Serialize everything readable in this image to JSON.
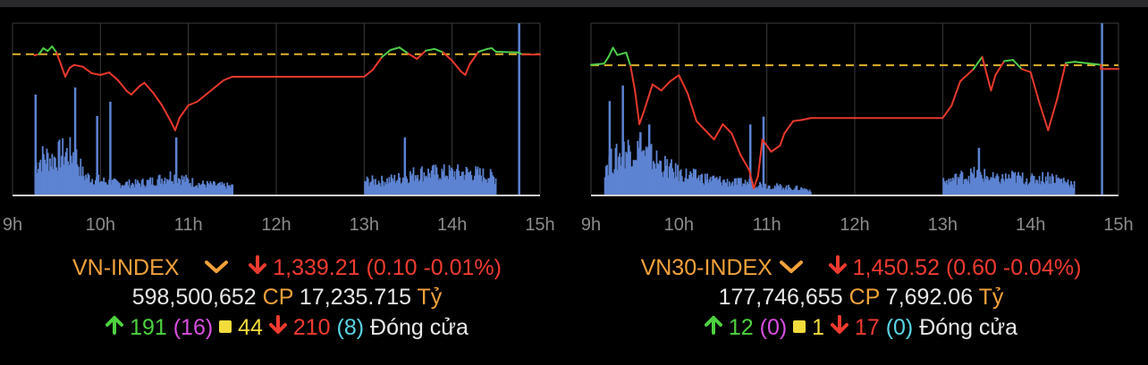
{
  "colors": {
    "background": "#000000",
    "grid": "#3c3c3c",
    "axis_line": "#d0d0d0",
    "tick_text": "#8c8c8c",
    "reference_line": "#e0b32c",
    "price_down": "#e8392c",
    "price_up": "#4fcf4a",
    "volume": "#5d83d2",
    "index_name": "#f3a23a"
  },
  "panels": [
    {
      "index_name": "VN-INDEX",
      "chevron_icon": "chevron-down-icon",
      "change_icon": "arrow-down-icon",
      "price": "1,339.21",
      "change": "(0.10 -0.01%)",
      "volume": "598,500,652",
      "volume_unit": "CP",
      "value": "17,235.715",
      "value_unit": "Tỷ",
      "advancers": "191",
      "ceiling": "(16)",
      "unchanged": "44",
      "decliners": "210",
      "floor": "(8)",
      "status": "Đóng cửa"
    },
    {
      "index_name": "VN30-INDEX",
      "chevron_icon": "chevron-down-icon",
      "change_icon": "arrow-down-icon",
      "price": "1,450.52",
      "change": "(0.60 -0.04%)",
      "volume": "177,746,655",
      "volume_unit": "CP",
      "value": "7,692.06",
      "value_unit": "Tỷ",
      "advancers": "12",
      "ceiling": "(0)",
      "unchanged": "1",
      "decliners": "17",
      "floor": "(0)",
      "status": "Đóng cửa"
    }
  ],
  "chart_data": [
    {
      "type": "line",
      "index": "VN-INDEX",
      "x_ticks": [
        "9h",
        "10h",
        "11h",
        "12h",
        "13h",
        "14h",
        "15h"
      ],
      "x_range_hours": [
        9,
        15
      ],
      "grid": true,
      "reference": 1339.31,
      "ylim": [
        1300,
        1348
      ],
      "price": [
        [
          9.25,
          1339.0
        ],
        [
          9.3,
          1339.3
        ],
        [
          9.35,
          1341.0
        ],
        [
          9.4,
          1340.2
        ],
        [
          9.45,
          1341.5
        ],
        [
          9.5,
          1339.8
        ],
        [
          9.55,
          1336.5
        ],
        [
          9.6,
          1333.0
        ],
        [
          9.65,
          1335.5
        ],
        [
          9.7,
          1336.3
        ],
        [
          9.8,
          1335.8
        ],
        [
          9.9,
          1334.0
        ],
        [
          10.0,
          1333.5
        ],
        [
          10.1,
          1334.2
        ],
        [
          10.2,
          1332.0
        ],
        [
          10.3,
          1329.0
        ],
        [
          10.35,
          1328.0
        ],
        [
          10.45,
          1330.5
        ],
        [
          10.5,
          1331.3
        ],
        [
          10.6,
          1328.5
        ],
        [
          10.7,
          1325.0
        ],
        [
          10.8,
          1320.5
        ],
        [
          10.85,
          1318.0
        ],
        [
          10.9,
          1321.5
        ],
        [
          11.0,
          1325.0
        ],
        [
          11.1,
          1326.0
        ],
        [
          11.2,
          1328.0
        ],
        [
          11.3,
          1330.0
        ],
        [
          11.4,
          1332.0
        ],
        [
          11.5,
          1333.0
        ],
        [
          13.0,
          1333.0
        ],
        [
          13.1,
          1335.0
        ],
        [
          13.2,
          1338.5
        ],
        [
          13.3,
          1340.5
        ],
        [
          13.4,
          1341.2
        ],
        [
          13.5,
          1339.5
        ],
        [
          13.6,
          1338.0
        ],
        [
          13.7,
          1340.3
        ],
        [
          13.8,
          1340.8
        ],
        [
          13.9,
          1339.8
        ],
        [
          14.0,
          1337.5
        ],
        [
          14.1,
          1334.5
        ],
        [
          14.15,
          1333.5
        ],
        [
          14.2,
          1336.5
        ],
        [
          14.3,
          1340.0
        ],
        [
          14.4,
          1340.8
        ],
        [
          14.45,
          1341.0
        ],
        [
          14.5,
          1340.0
        ],
        [
          14.75,
          1339.8
        ],
        [
          14.8,
          1339.21
        ],
        [
          15.0,
          1339.21
        ]
      ],
      "volume_profile": [
        [
          9.25,
          22
        ],
        [
          9.35,
          28
        ],
        [
          9.45,
          26
        ],
        [
          9.55,
          30
        ],
        [
          9.7,
          30
        ],
        [
          9.8,
          14
        ],
        [
          10.0,
          10
        ],
        [
          10.2,
          8
        ],
        [
          10.4,
          8
        ],
        [
          10.6,
          10
        ],
        [
          10.8,
          14
        ],
        [
          10.9,
          12
        ],
        [
          11.1,
          8
        ],
        [
          11.3,
          7
        ],
        [
          11.5,
          6
        ],
        [
          13.0,
          10
        ],
        [
          13.2,
          10
        ],
        [
          13.4,
          12
        ],
        [
          13.6,
          16
        ],
        [
          13.8,
          16
        ],
        [
          14.0,
          16
        ],
        [
          14.2,
          16
        ],
        [
          14.4,
          14
        ],
        [
          14.5,
          12
        ]
      ],
      "volume_spikes": [
        [
          9.25,
          70
        ],
        [
          9.7,
          75
        ],
        [
          9.95,
          55
        ],
        [
          10.1,
          65
        ],
        [
          10.85,
          40
        ],
        [
          13.45,
          40
        ],
        [
          14.75,
          120
        ]
      ],
      "volume_ylim": [
        0,
        120
      ]
    },
    {
      "type": "line",
      "index": "VN30-INDEX",
      "x_ticks": [
        "9h",
        "10h",
        "11h",
        "12h",
        "13h",
        "14h",
        "15h"
      ],
      "x_range_hours": [
        9,
        15
      ],
      "grid": true,
      "reference": 1451.12,
      "ylim": [
        1430,
        1458
      ],
      "price": [
        [
          9.0,
          1451.2
        ],
        [
          9.15,
          1451.4
        ],
        [
          9.2,
          1452.5
        ],
        [
          9.25,
          1454.0
        ],
        [
          9.3,
          1452.8
        ],
        [
          9.4,
          1453.2
        ],
        [
          9.45,
          1451.0
        ],
        [
          9.5,
          1447.0
        ],
        [
          9.55,
          1441.5
        ],
        [
          9.6,
          1443.5
        ],
        [
          9.7,
          1448.0
        ],
        [
          9.8,
          1447.0
        ],
        [
          9.9,
          1448.5
        ],
        [
          10.0,
          1449.5
        ],
        [
          10.1,
          1446.5
        ],
        [
          10.2,
          1442.0
        ],
        [
          10.3,
          1440.5
        ],
        [
          10.4,
          1439.0
        ],
        [
          10.5,
          1441.5
        ],
        [
          10.6,
          1440.0
        ],
        [
          10.7,
          1436.5
        ],
        [
          10.8,
          1434.0
        ],
        [
          10.85,
          1431.0
        ],
        [
          10.9,
          1433.0
        ],
        [
          10.95,
          1439.0
        ],
        [
          11.05,
          1437.0
        ],
        [
          11.15,
          1438.0
        ],
        [
          11.2,
          1440.0
        ],
        [
          11.3,
          1442.0
        ],
        [
          11.4,
          1442.2
        ],
        [
          11.5,
          1442.5
        ],
        [
          13.0,
          1442.5
        ],
        [
          13.1,
          1444.5
        ],
        [
          13.2,
          1448.5
        ],
        [
          13.35,
          1450.5
        ],
        [
          13.45,
          1452.5
        ],
        [
          13.55,
          1447.0
        ],
        [
          13.6,
          1449.5
        ],
        [
          13.7,
          1451.8
        ],
        [
          13.8,
          1452.0
        ],
        [
          13.9,
          1450.5
        ],
        [
          14.0,
          1450.0
        ],
        [
          14.1,
          1445.0
        ],
        [
          14.2,
          1440.5
        ],
        [
          14.3,
          1445.5
        ],
        [
          14.4,
          1451.5
        ],
        [
          14.5,
          1451.7
        ],
        [
          14.8,
          1451.2
        ],
        [
          14.8,
          1450.52
        ],
        [
          15.0,
          1450.52
        ]
      ],
      "volume_profile": [
        [
          9.15,
          20
        ],
        [
          9.3,
          25
        ],
        [
          9.45,
          32
        ],
        [
          9.6,
          28
        ],
        [
          9.8,
          20
        ],
        [
          10.0,
          14
        ],
        [
          10.2,
          12
        ],
        [
          10.4,
          10
        ],
        [
          10.6,
          8
        ],
        [
          10.8,
          8
        ],
        [
          11.0,
          6
        ],
        [
          11.2,
          5
        ],
        [
          11.4,
          4
        ],
        [
          11.5,
          3
        ],
        [
          13.0,
          8
        ],
        [
          13.2,
          12
        ],
        [
          13.4,
          14
        ],
        [
          13.6,
          10
        ],
        [
          13.8,
          12
        ],
        [
          14.0,
          10
        ],
        [
          14.2,
          12
        ],
        [
          14.4,
          9
        ],
        [
          14.5,
          7
        ]
      ],
      "volume_spikes": [
        [
          9.2,
          60
        ],
        [
          9.35,
          70
        ],
        [
          9.55,
          40
        ],
        [
          9.65,
          45
        ],
        [
          10.8,
          45
        ],
        [
          10.95,
          50
        ],
        [
          13.4,
          30
        ],
        [
          14.8,
          110
        ]
      ],
      "volume_ylim": [
        0,
        110
      ]
    }
  ]
}
